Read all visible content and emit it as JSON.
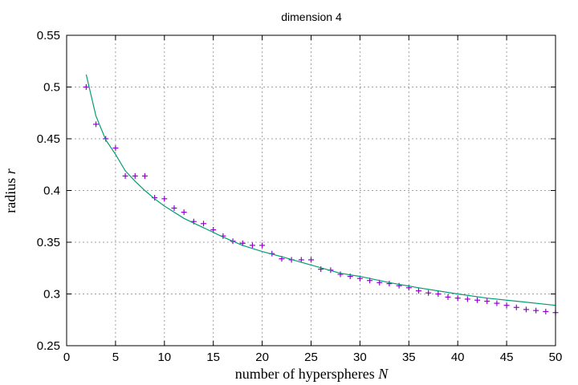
{
  "chart_data": {
    "type": "scatter",
    "title": "dimension 4",
    "xlabel": "number of hyperspheres",
    "xlabel_var": "N",
    "ylabel": "radius",
    "ylabel_var": "r",
    "xlim": [
      0,
      50
    ],
    "ylim": [
      0.25,
      0.55
    ],
    "x_ticks": [
      0,
      5,
      10,
      15,
      20,
      25,
      30,
      35,
      40,
      45,
      50
    ],
    "y_ticks": [
      0.25,
      0.3,
      0.35,
      0.4,
      0.45,
      0.5,
      0.55
    ],
    "y_tick_labels": [
      "0.25",
      "0.3",
      "0.35",
      "0.4",
      "0.45",
      "0.5",
      "0.55"
    ],
    "grid": true,
    "legend": "none",
    "series": [
      {
        "type": "scatter",
        "marker": "plus",
        "color": "#9400d3",
        "x": [
          2,
          3,
          4,
          5,
          6,
          7,
          8,
          9,
          10,
          11,
          12,
          13,
          14,
          15,
          16,
          17,
          18,
          19,
          20,
          21,
          22,
          23,
          24,
          25,
          26,
          27,
          28,
          29,
          30,
          31,
          32,
          33,
          34,
          35,
          36,
          37,
          38,
          39,
          40,
          41,
          42,
          43,
          44,
          45,
          46,
          47,
          48,
          49,
          50
        ],
        "y": [
          0.5,
          0.464,
          0.45,
          0.441,
          0.414,
          0.414,
          0.414,
          0.393,
          0.392,
          0.383,
          0.379,
          0.37,
          0.368,
          0.362,
          0.356,
          0.351,
          0.349,
          0.347,
          0.347,
          0.339,
          0.334,
          0.333,
          0.333,
          0.333,
          0.324,
          0.323,
          0.319,
          0.317,
          0.315,
          0.313,
          0.311,
          0.31,
          0.308,
          0.306,
          0.303,
          0.301,
          0.3,
          0.297,
          0.296,
          0.295,
          0.294,
          0.293,
          0.291,
          0.289,
          0.287,
          0.285,
          0.284,
          0.283,
          0.282
        ]
      },
      {
        "type": "line",
        "color": "#009e73",
        "x": [
          2,
          3,
          4,
          5,
          6,
          7,
          8,
          9,
          10,
          12,
          14,
          16,
          18,
          20,
          22,
          25,
          28,
          30,
          33,
          36,
          40,
          43,
          46,
          50
        ],
        "y": [
          0.512,
          0.472,
          0.449,
          0.435,
          0.419,
          0.409,
          0.4,
          0.392,
          0.385,
          0.373,
          0.364,
          0.355,
          0.347,
          0.341,
          0.336,
          0.328,
          0.32,
          0.317,
          0.311,
          0.306,
          0.3,
          0.296,
          0.293,
          0.289
        ]
      }
    ]
  }
}
